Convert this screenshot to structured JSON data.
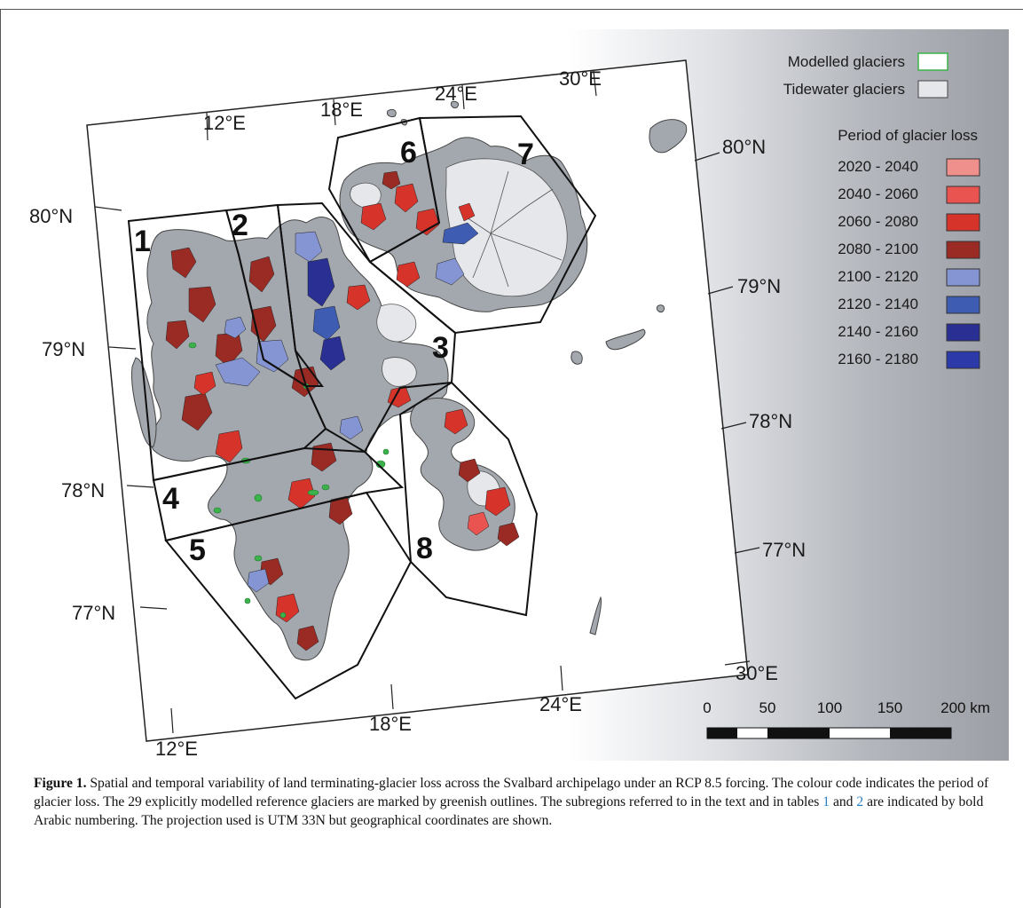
{
  "map": {
    "longitude_labels_top": [
      "12°E",
      "18°E",
      "24°E",
      "30°E"
    ],
    "longitude_labels_bottom": [
      "12°E",
      "18°E",
      "24°E",
      "30°E"
    ],
    "latitude_labels_left": [
      "80°N",
      "79°N",
      "78°N",
      "77°N"
    ],
    "latitude_labels_right": [
      "80°N",
      "79°N",
      "78°N",
      "77°N"
    ],
    "regions": [
      "1",
      "2",
      "3",
      "4",
      "5",
      "6",
      "7",
      "8"
    ],
    "colors": {
      "land": "#a3a8ae",
      "tidewater": "#e6e7ea",
      "modelled_outline": "#2fa84f"
    }
  },
  "legend": {
    "modelled": "Modelled glaciers",
    "tidewater": "Tidewater glaciers",
    "period_title": "Period of glacier loss",
    "periods": [
      {
        "label": "2020 - 2040",
        "color": "#f0908c"
      },
      {
        "label": "2040 - 2060",
        "color": "#ea5450"
      },
      {
        "label": "2060 - 2080",
        "color": "#d6332b"
      },
      {
        "label": "2080 - 2100",
        "color": "#9a2a24"
      },
      {
        "label": "2100 - 2120",
        "color": "#8594d2"
      },
      {
        "label": "2120 - 2140",
        "color": "#3f5cb3"
      },
      {
        "label": "2140 - 2160",
        "color": "#2a2f94"
      },
      {
        "label": "2160 - 2180",
        "color": "#2b3aa8"
      }
    ]
  },
  "scale_bar": {
    "ticks": [
      "0",
      "50",
      "100",
      "150",
      "200 km"
    ]
  },
  "caption": {
    "label": "Figure 1.",
    "text_part1": " Spatial and temporal variability of land terminating-glacier loss across the Svalbard archipelago under an RCP 8.5 forcing. The colour code indicates the period of glacier loss. The 29 explicitly modelled reference glaciers are marked by greenish outlines. The subregions referred to in the text and in tables ",
    "table_ref_1": "1",
    "text_and": " and ",
    "table_ref_2": "2",
    "text_part2": " are indicated by bold Arabic numbering. The projection used is UTM 33N but geographical coordinates are shown."
  }
}
